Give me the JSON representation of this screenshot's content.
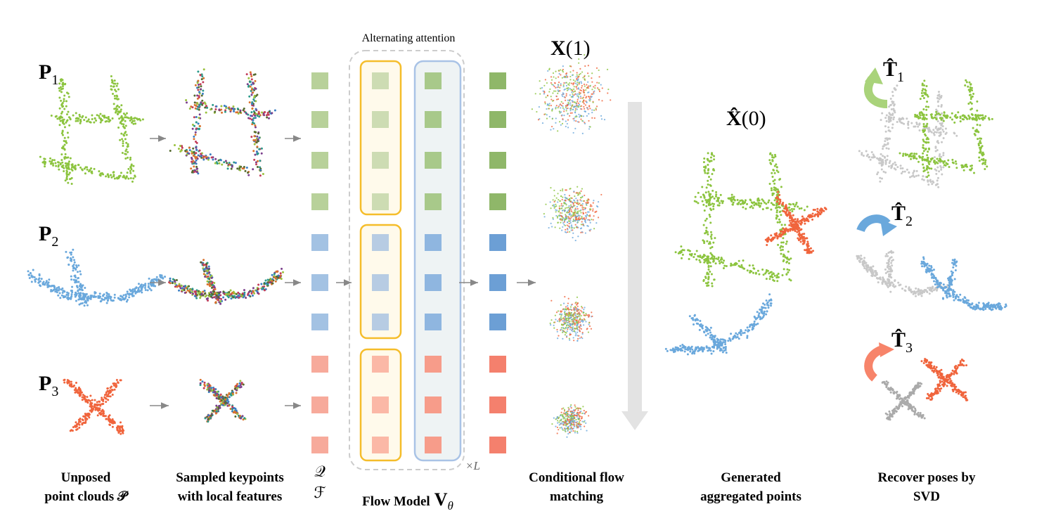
{
  "attention_label": "Alternating attention",
  "clouds": [
    {
      "name": "P",
      "sub": "1"
    },
    {
      "name": "P",
      "sub": "2"
    },
    {
      "name": "P",
      "sub": "3"
    }
  ],
  "tokens": {
    "q": "𝒬",
    "f": "ℱ"
  },
  "repeat": "×L",
  "noise_label": {
    "name": "X",
    "arg": "(1)"
  },
  "output_label": {
    "name": "X̂",
    "arg": "(0)"
  },
  "poses": [
    {
      "name": "T̂",
      "sub": "1"
    },
    {
      "name": "T̂",
      "sub": "2"
    },
    {
      "name": "T̂",
      "sub": "3"
    }
  ],
  "captions": {
    "unposed": [
      "Unposed",
      "point clouds 𝒫"
    ],
    "keypoints": [
      "Sampled keypoints",
      "with local features"
    ],
    "flow_model": {
      "text": "Flow Model",
      "symbol": "V",
      "sub": "θ"
    },
    "matching": [
      "Conditional flow",
      "matching"
    ],
    "generated": [
      "Generated",
      "aggregated points"
    ],
    "recover": [
      "Recover poses by",
      "SVD"
    ]
  }
}
